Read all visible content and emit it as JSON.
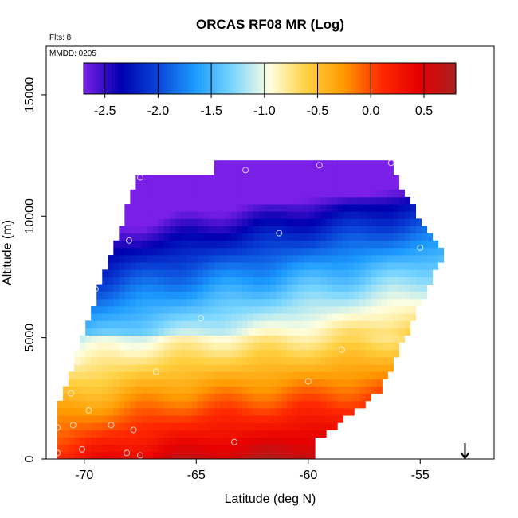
{
  "chart_data": {
    "type": "heatmap",
    "title": "ORCAS RF08 MR (Log)",
    "xlabel": "Latitude (deg N)",
    "ylabel": "Altitude (m)",
    "xlim": [
      -71.7,
      -51.7
    ],
    "ylim": [
      0,
      17000
    ],
    "xticks": [
      -70,
      -65,
      -60,
      -55
    ],
    "yticks": [
      0,
      5000,
      10000,
      15000
    ],
    "flights_label": "Flts: 8",
    "mmdd_label": "MMDD: 0205",
    "colorbar": {
      "range": [
        -2.7,
        0.8
      ],
      "ticks": [
        -2.5,
        -2.0,
        -1.5,
        -1.0,
        -0.5,
        0.0,
        0.5
      ],
      "tick_labels": [
        "-2.5",
        "-2.0",
        "-1.5",
        "-1.0",
        "-0.5",
        "0.0",
        "0.5"
      ],
      "colors": [
        "#7a1fe6",
        "#0000b0",
        "#0a46d8",
        "#1c9bff",
        "#7ad6ff",
        "#ffffe0",
        "#ffd040",
        "#ff9900",
        "#ff2a00",
        "#e60000",
        "#a82020"
      ]
    },
    "field": {
      "lat_min": -71.2,
      "lat_max": -53.8,
      "alt_min": 0,
      "alt_max": 12300,
      "cell_lat": 0.25,
      "cell_alt": 300,
      "description": "log10 mixing ratio versus latitude and altitude along flight track"
    },
    "profile_points": [
      {
        "lat": -67.5,
        "alt": 11600
      },
      {
        "lat": -62.8,
        "alt": 11900
      },
      {
        "lat": -59.5,
        "alt": 12100
      },
      {
        "lat": -56.3,
        "alt": 12200
      },
      {
        "lat": -68.0,
        "alt": 9000
      },
      {
        "lat": -61.3,
        "alt": 9300
      },
      {
        "lat": -55.0,
        "alt": 8700
      },
      {
        "lat": -69.5,
        "alt": 7000
      },
      {
        "lat": -64.8,
        "alt": 5800
      },
      {
        "lat": -58.5,
        "alt": 4500
      },
      {
        "lat": -70.3,
        "alt": 4000
      },
      {
        "lat": -66.8,
        "alt": 3600
      },
      {
        "lat": -60.0,
        "alt": 3200
      },
      {
        "lat": -70.6,
        "alt": 2700
      },
      {
        "lat": -69.8,
        "alt": 2000
      },
      {
        "lat": -57.2,
        "alt": 2200
      },
      {
        "lat": -71.2,
        "alt": 1300
      },
      {
        "lat": -70.5,
        "alt": 1400
      },
      {
        "lat": -68.8,
        "alt": 1400
      },
      {
        "lat": -67.8,
        "alt": 1200
      },
      {
        "lat": -63.3,
        "alt": 700
      },
      {
        "lat": -59.1,
        "alt": 700
      },
      {
        "lat": -71.2,
        "alt": 250
      },
      {
        "lat": -70.1,
        "alt": 400
      },
      {
        "lat": -68.1,
        "alt": 250
      },
      {
        "lat": -67.5,
        "alt": 150
      }
    ],
    "arrow": {
      "lat": -53.0,
      "direction": "down"
    }
  }
}
